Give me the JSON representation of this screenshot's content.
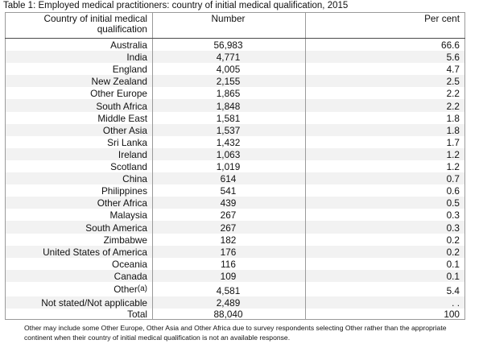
{
  "caption": "Table 1: Employed medical practitioners: country of initial medical qualification, 2015",
  "headers": {
    "country_line1": "Country of initial medical",
    "country_line2": "qualification",
    "number": "Number",
    "percent": "Per cent"
  },
  "rows": [
    {
      "country": "Australia",
      "number": "56,983",
      "percent": "66.6"
    },
    {
      "country": "India",
      "number": "4,771",
      "percent": "5.6"
    },
    {
      "country": "England",
      "number": "4,005",
      "percent": "4.7"
    },
    {
      "country": "New Zealand",
      "number": "2,155",
      "percent": "2.5"
    },
    {
      "country": "Other Europe",
      "number": "1,865",
      "percent": "2.2"
    },
    {
      "country": "South Africa",
      "number": "1,848",
      "percent": "2.2"
    },
    {
      "country": "Middle East",
      "number": "1,581",
      "percent": "1.8"
    },
    {
      "country": "Other Asia",
      "number": "1,537",
      "percent": "1.8"
    },
    {
      "country": "Sri Lanka",
      "number": "1,432",
      "percent": "1.7"
    },
    {
      "country": "Ireland",
      "number": "1,063",
      "percent": "1.2"
    },
    {
      "country": "Scotland",
      "number": "1,019",
      "percent": "1.2"
    },
    {
      "country": "China",
      "number": "614",
      "percent": "0.7"
    },
    {
      "country": "Philippines",
      "number": "541",
      "percent": "0.6"
    },
    {
      "country": "Other Africa",
      "number": "439",
      "percent": "0.5"
    },
    {
      "country": "Malaysia",
      "number": "267",
      "percent": "0.3"
    },
    {
      "country": "South America",
      "number": "267",
      "percent": "0.3"
    },
    {
      "country": "Zimbabwe",
      "number": "182",
      "percent": "0.2"
    },
    {
      "country": "United States of America",
      "number": "176",
      "percent": "0.2"
    },
    {
      "country": "Oceania",
      "number": "116",
      "percent": "0.1"
    },
    {
      "country": "Canada",
      "number": "109",
      "percent": "0.1"
    }
  ],
  "other_row": {
    "country": "Other",
    "superscript": "(a)",
    "number": "4,581",
    "percent": "5.4"
  },
  "not_stated_row": {
    "country": "Not stated/Not applicable",
    "number": "2,489",
    "percent": ". ."
  },
  "total_row": {
    "country": "Total",
    "number": "88,040",
    "percent": "100"
  },
  "footnote_line1": "Other may include some Other Europe, Other Asia and Other Africa due to survey respondents selecting Other rather than the appropriate",
  "footnote_line2": "continent when their country of initial medical qualification is not an available response."
}
